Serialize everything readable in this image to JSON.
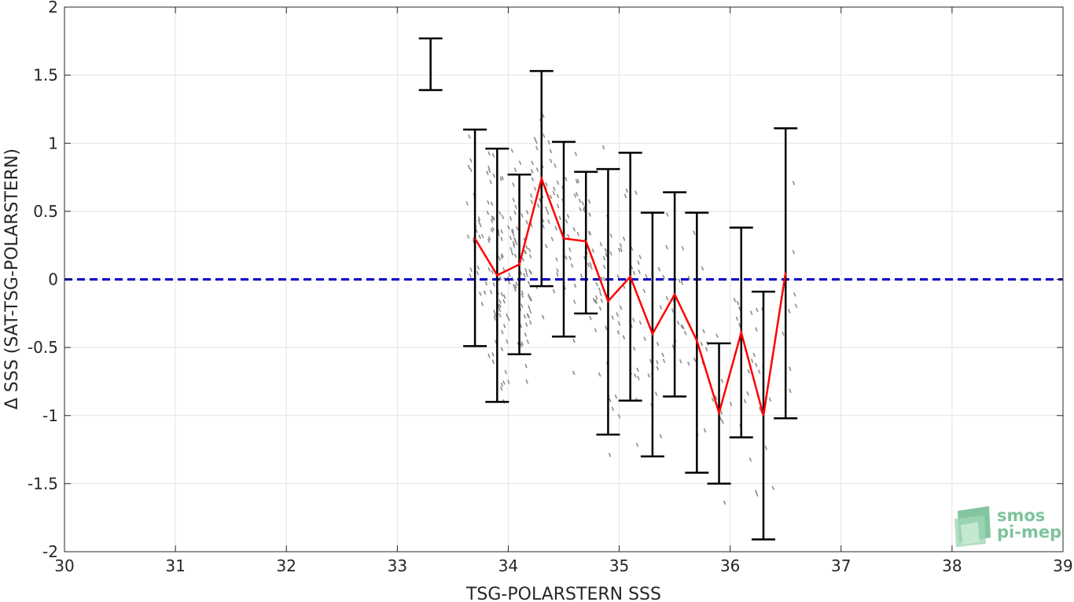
{
  "chart_data": {
    "type": "scatter",
    "title": "",
    "xlabel": "TSG-POLARSTERN SSS",
    "ylabel": "Δ SSS (SAT-TSG-POLARSTERN)",
    "xlim": [
      30,
      39
    ],
    "ylim": [
      -2,
      2
    ],
    "xticks": [
      30,
      31,
      32,
      33,
      34,
      35,
      36,
      37,
      38,
      39
    ],
    "yticks": [
      -2,
      -1.5,
      -1,
      -0.5,
      0,
      0.5,
      1,
      1.5,
      2
    ],
    "x_tick_labels": [
      "30",
      "31",
      "32",
      "33",
      "34",
      "35",
      "36",
      "37",
      "38",
      "39"
    ],
    "y_tick_labels": [
      "-2",
      "-1.5",
      "-1",
      "-0.5",
      "0",
      "0.5",
      "1",
      "1.5",
      "2"
    ],
    "grid": true,
    "reference_line": {
      "y": 0,
      "style": "dashed",
      "color": "#0000cc"
    },
    "scatter_color": "#8c8c8c",
    "mean_line_color": "#ff0000",
    "errorbar_color": "#000000",
    "mean_curve": {
      "x": [
        33.7,
        33.9,
        34.1,
        34.3,
        34.5,
        34.7,
        34.9,
        35.1,
        35.3,
        35.5,
        35.7,
        35.9,
        36.1,
        36.3,
        36.5
      ],
      "y": [
        0.3,
        0.03,
        0.11,
        0.74,
        0.3,
        0.28,
        -0.16,
        0.02,
        -0.4,
        -0.11,
        -0.45,
        -0.98,
        -0.39,
        -1.0,
        0.05
      ]
    },
    "error_bars": [
      {
        "x": 33.3,
        "lower": 1.39,
        "upper": 1.77
      },
      {
        "x": 33.7,
        "lower": -0.49,
        "upper": 1.1
      },
      {
        "x": 33.9,
        "lower": -0.9,
        "upper": 0.96
      },
      {
        "x": 34.1,
        "lower": -0.55,
        "upper": 0.77
      },
      {
        "x": 34.3,
        "lower": -0.05,
        "upper": 1.53
      },
      {
        "x": 34.5,
        "lower": -0.42,
        "upper": 1.01
      },
      {
        "x": 34.7,
        "lower": -0.25,
        "upper": 0.79
      },
      {
        "x": 34.9,
        "lower": -1.14,
        "upper": 0.81
      },
      {
        "x": 35.1,
        "lower": -0.89,
        "upper": 0.93
      },
      {
        "x": 35.3,
        "lower": -1.3,
        "upper": 0.49
      },
      {
        "x": 35.5,
        "lower": -0.86,
        "upper": 0.64
      },
      {
        "x": 35.7,
        "lower": -1.42,
        "upper": 0.49
      },
      {
        "x": 35.9,
        "lower": -1.5,
        "upper": -0.47
      },
      {
        "x": 36.1,
        "lower": -1.16,
        "upper": 0.38
      },
      {
        "x": 36.3,
        "lower": -1.91,
        "upper": -0.09
      },
      {
        "x": 36.5,
        "lower": -1.02,
        "upper": 1.11
      }
    ],
    "scatter_clusters": [
      {
        "x": 33.7,
        "y_center": 0.3,
        "spread": 0.55,
        "n": 25
      },
      {
        "x": 33.9,
        "y_center": 0.05,
        "spread": 0.7,
        "n": 70
      },
      {
        "x": 34.1,
        "y_center": 0.1,
        "spread": 0.6,
        "n": 70
      },
      {
        "x": 34.3,
        "y_center": 0.7,
        "spread": 0.7,
        "n": 35
      },
      {
        "x": 34.5,
        "y_center": 0.3,
        "spread": 0.6,
        "n": 30
      },
      {
        "x": 34.7,
        "y_center": 0.25,
        "spread": 0.45,
        "n": 30
      },
      {
        "x": 34.9,
        "y_center": -0.15,
        "spread": 0.8,
        "n": 30
      },
      {
        "x": 35.1,
        "y_center": 0.0,
        "spread": 0.8,
        "n": 25
      },
      {
        "x": 35.3,
        "y_center": -0.4,
        "spread": 0.7,
        "n": 18
      },
      {
        "x": 35.5,
        "y_center": -0.1,
        "spread": 0.6,
        "n": 15
      },
      {
        "x": 35.7,
        "y_center": -0.45,
        "spread": 0.7,
        "n": 12
      },
      {
        "x": 35.9,
        "y_center": -0.95,
        "spread": 0.45,
        "n": 10
      },
      {
        "x": 36.1,
        "y_center": -0.4,
        "spread": 0.6,
        "n": 14
      },
      {
        "x": 36.3,
        "y_center": -0.95,
        "spread": 0.7,
        "n": 14
      },
      {
        "x": 36.5,
        "y_center": 0.05,
        "spread": 0.7,
        "n": 8
      }
    ]
  },
  "logo": {
    "line1": "smos",
    "line2": "pi-mep",
    "color": "#7cc49a"
  }
}
